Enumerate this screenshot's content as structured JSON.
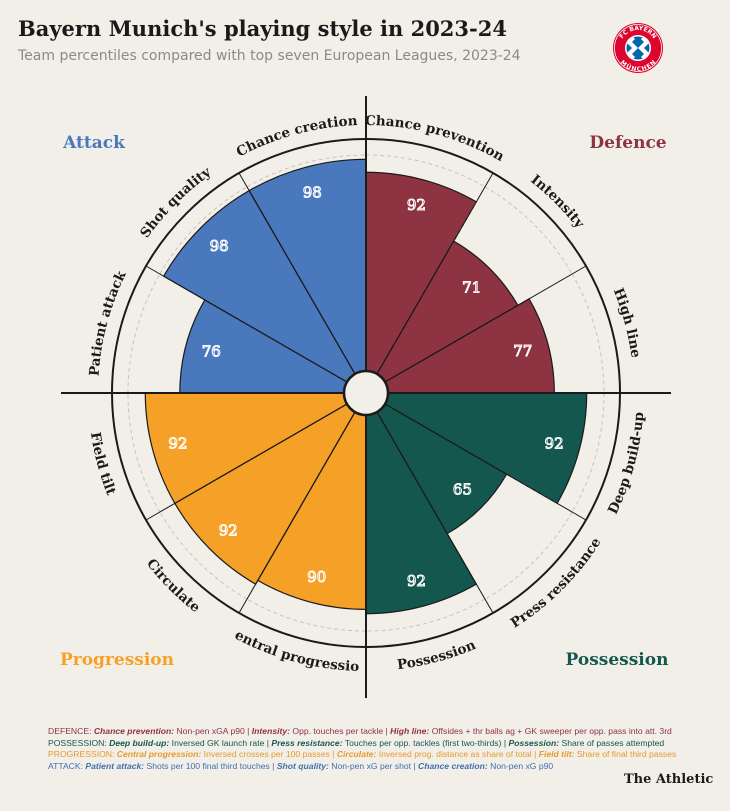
{
  "header": {
    "title": "Bayern Munich's playing style in 2023-24",
    "subtitle": "Team percentiles compared with top seven European Leagues, 2023-24"
  },
  "badge": {
    "text_top": "FC BAYERN",
    "text_bottom": "MÜNCHEN"
  },
  "brand": "The Athletic",
  "colors": {
    "attack": "#4a78bd",
    "defence": "#8e3342",
    "progression": "#f5a026",
    "possession": "#14574f",
    "background": "#f2efe8"
  },
  "chart_data": {
    "type": "polar-bar",
    "title": "Bayern Munich's playing style in 2023-24",
    "value_max": 100,
    "groups": [
      {
        "name": "Defence",
        "color": "#8e3342",
        "metrics": [
          {
            "name": "Chance prevention",
            "value": 92
          },
          {
            "name": "Intensity",
            "value": 71
          },
          {
            "name": "High line",
            "value": 77
          }
        ]
      },
      {
        "name": "Possession",
        "color": "#14574f",
        "metrics": [
          {
            "name": "Deep build-up",
            "value": 92
          },
          {
            "name": "Press resistance",
            "value": 65
          },
          {
            "name": "Possession",
            "value": 92
          }
        ]
      },
      {
        "name": "Progression",
        "color": "#f5a026",
        "metrics": [
          {
            "name": "Central progression",
            "value": 90
          },
          {
            "name": "Circulate",
            "value": 92
          },
          {
            "name": "Field tilt",
            "value": 92
          }
        ]
      },
      {
        "name": "Attack",
        "color": "#4a78bd",
        "metrics": [
          {
            "name": "Patient attack",
            "value": 76
          },
          {
            "name": "Shot quality",
            "value": 98
          },
          {
            "name": "Chance creation",
            "value": 98
          }
        ]
      }
    ]
  },
  "footnotes": {
    "defence": {
      "prefix": "DEFENCE: ",
      "items": [
        {
          "key": "Chance prevention:",
          "text": " Non-pen xGA p90 | "
        },
        {
          "key": "Intensity:",
          "text": " Opp. touches per tackle | "
        },
        {
          "key": "High line:",
          "text": " Offsides + thr balls ag + GK sweeper per opp. pass into att. 3rd"
        }
      ]
    },
    "possession": {
      "prefix": "POSSESSION: ",
      "items": [
        {
          "key": "Deep build-up:",
          "text": " Inversed GK launch rate | "
        },
        {
          "key": "Press resistance:",
          "text": " Touches per opp. tackles (first two-thirds) | "
        },
        {
          "key": "Possession:",
          "text": " Share of passes attempted"
        }
      ]
    },
    "progression": {
      "prefix": "PROGRESSION: ",
      "items": [
        {
          "key": "Central progression:",
          "text": " Inversed crosses per 100 passes | "
        },
        {
          "key": "Circulate:",
          "text": " Inversed prog. distance as share of total | "
        },
        {
          "key": "Field tilt:",
          "text": " Share of final third passes"
        }
      ]
    },
    "attack": {
      "prefix": "ATTACK: ",
      "items": [
        {
          "key": "Patient attack:",
          "text": " Shots per 100 final third touches | "
        },
        {
          "key": "Shot quality:",
          "text": " Non-pen xG per shot | "
        },
        {
          "key": "Chance creation:",
          "text": " Non-pen xG p90"
        }
      ]
    }
  }
}
